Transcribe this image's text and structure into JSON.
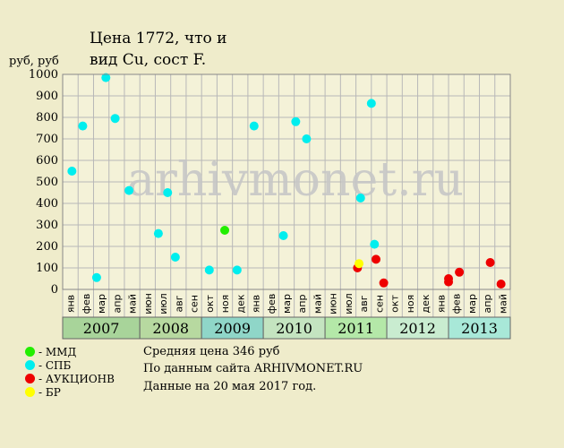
{
  "header": {
    "title_line1": "Цена 1772, что и",
    "title_line2": "вид Cu, сост F."
  },
  "watermark": "arhivmonet.ru",
  "legend": [
    {
      "label": "- ММД",
      "color": "#22ee00"
    },
    {
      "label": "- СПБ",
      "color": "#00eeee"
    },
    {
      "label": "- АУКЦИОНB",
      "color": "#ee0000"
    },
    {
      "label": "- БР",
      "color": "#ffff00"
    }
  ],
  "notes": [
    "Средняя цена 346 руб",
    "По данным сайта ARHIVMONET.RU",
    "Данные на 20 мая 2017 год."
  ],
  "colors": {
    "background": "#efeccb",
    "plot_background": "#f4f2d8",
    "grid": "#b8b8b8",
    "sales_type_1": "#22ee00",
    "sales_type_2": "#00eeee",
    "sales_type_3": "#ee0000",
    "sales_type_4": "#ffff00"
  },
  "chart_data": {
    "type": "scatter",
    "title": "Цена 1772, что и",
    "subtitle": "вид Cu, сост F.",
    "ylabel": "руб, руб",
    "ylim": [
      0,
      1000
    ],
    "yticks": [
      0,
      100,
      200,
      300,
      400,
      500,
      600,
      700,
      800,
      900,
      1000
    ],
    "grid": true,
    "legend_position": "bottom-left",
    "x_period_labels": [
      "янв",
      "фев",
      "мар",
      "апр",
      "май",
      "июн",
      "июл",
      "авг",
      "сен",
      "окт",
      "ноя",
      "дек",
      "янв",
      "фев",
      "мар",
      "апр",
      "май",
      "июн",
      "июл",
      "авг",
      "сен",
      "окт",
      "ноя",
      "дек",
      "янв",
      "фев",
      "мар",
      "апр",
      "май"
    ],
    "years": [
      {
        "label": "2007",
        "from": 0,
        "to": 5,
        "color": "#a8d49a"
      },
      {
        "label": "2008",
        "from": 5,
        "to": 9,
        "color": "#b7d9a0"
      },
      {
        "label": "2009",
        "from": 9,
        "to": 13,
        "color": "#8fd6c8"
      },
      {
        "label": "2010",
        "from": 13,
        "to": 17,
        "color": "#c4e4c0"
      },
      {
        "label": "2011",
        "from": 17,
        "to": 21,
        "color": "#b4e8a8"
      },
      {
        "label": "2012",
        "from": 21,
        "to": 25,
        "color": "#c9ecd0"
      },
      {
        "label": "2013",
        "from": 25,
        "to": 29,
        "color": "#a8e8d8"
      }
    ],
    "series": [
      {
        "name": "ММД",
        "color": "#22ee00",
        "points": [
          [
            10.5,
            275
          ]
        ]
      },
      {
        "name": "СПБ",
        "color": "#00eeee",
        "points": [
          [
            0.6,
            550
          ],
          [
            1.3,
            760
          ],
          [
            2.2,
            55
          ],
          [
            2.8,
            985
          ],
          [
            3.4,
            795
          ],
          [
            4.3,
            460
          ],
          [
            6.2,
            260
          ],
          [
            6.8,
            450
          ],
          [
            7.3,
            150
          ],
          [
            9.5,
            90
          ],
          [
            11.3,
            90
          ],
          [
            12.4,
            760
          ],
          [
            14.3,
            250
          ],
          [
            15.1,
            780
          ],
          [
            15.8,
            700
          ],
          [
            19.3,
            425
          ],
          [
            20.0,
            865
          ],
          [
            20.2,
            210
          ]
        ]
      },
      {
        "name": "АУКЦИОНB",
        "color": "#ee0000",
        "points": [
          [
            19.1,
            100
          ],
          [
            20.3,
            140
          ],
          [
            20.8,
            30
          ],
          [
            25.0,
            50
          ],
          [
            25.0,
            35
          ],
          [
            25.7,
            80
          ],
          [
            27.7,
            125
          ],
          [
            28.4,
            25
          ]
        ]
      },
      {
        "name": "БР",
        "color": "#ffff00",
        "points": [
          [
            19.2,
            120
          ]
        ]
      }
    ]
  }
}
